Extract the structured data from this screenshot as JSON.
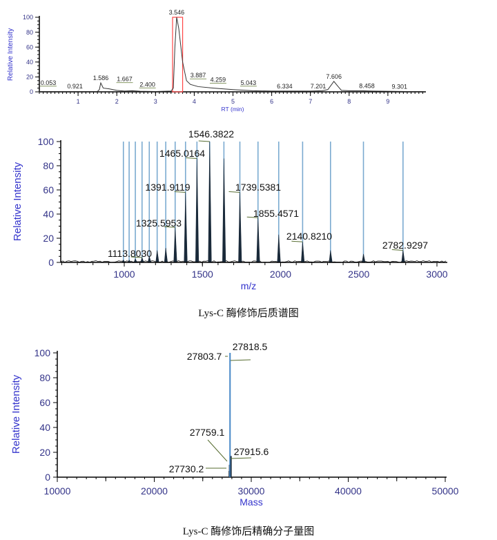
{
  "chart_data": [
    {
      "type": "line",
      "xlabel": "RT (min)",
      "ylabel": "Relative Intensity",
      "xlim": [
        0,
        10
      ],
      "ylim": [
        0,
        100
      ],
      "xticks": [
        "1",
        "2",
        "3",
        "4",
        "5",
        "6",
        "7",
        "8",
        "9"
      ],
      "yticks": [
        "0",
        "20",
        "40",
        "60",
        "80",
        "100"
      ],
      "trace": [
        [
          0,
          0.5
        ],
        [
          1.5,
          0.5
        ],
        [
          1.55,
          3
        ],
        [
          1.586,
          12
        ],
        [
          1.65,
          5
        ],
        [
          1.8,
          4
        ],
        [
          2.0,
          2
        ],
        [
          2.2,
          1
        ],
        [
          2.4,
          1.5
        ],
        [
          2.6,
          0.8
        ],
        [
          3.0,
          0.5
        ],
        [
          3.4,
          1
        ],
        [
          3.46,
          5
        ],
        [
          3.5,
          60
        ],
        [
          3.546,
          100
        ],
        [
          3.6,
          85
        ],
        [
          3.7,
          40
        ],
        [
          3.8,
          15
        ],
        [
          3.9,
          10
        ],
        [
          4.1,
          7
        ],
        [
          4.5,
          5
        ],
        [
          5.0,
          3
        ],
        [
          5.5,
          1.5
        ],
        [
          6.0,
          1
        ],
        [
          7.0,
          1
        ],
        [
          7.3,
          1.5
        ],
        [
          7.45,
          3
        ],
        [
          7.55,
          10
        ],
        [
          7.606,
          14
        ],
        [
          7.7,
          8
        ],
        [
          7.8,
          2
        ],
        [
          8.0,
          1.5
        ],
        [
          8.3,
          1.5
        ],
        [
          8.6,
          1
        ],
        [
          9.5,
          0.5
        ],
        [
          9.9,
          0.5
        ]
      ],
      "peak_labels": [
        {
          "rt": 0.053,
          "label": "0.053",
          "y": 3
        },
        {
          "rt": 0.921,
          "label": "0.921",
          "y": 1
        },
        {
          "rt": 1.586,
          "label": "1.586",
          "y": 12
        },
        {
          "rt": 1.667,
          "label": "1.667",
          "y": 5
        },
        {
          "rt": 2.4,
          "label": "2.400",
          "y": 1.5
        },
        {
          "rt": 3.546,
          "label": "3.546",
          "y": 100
        },
        {
          "rt": 3.887,
          "label": "3.887",
          "y": 10
        },
        {
          "rt": 4.259,
          "label": "4.259",
          "y": 6
        },
        {
          "rt": 5.043,
          "label": "5.043",
          "y": 3
        },
        {
          "rt": 6.334,
          "label": "6.334",
          "y": 1
        },
        {
          "rt": 7.201,
          "label": "7.201",
          "y": 1
        },
        {
          "rt": 7.606,
          "label": "7.606",
          "y": 14
        },
        {
          "rt": 8.458,
          "label": "8.458",
          "y": 1.5
        },
        {
          "rt": 9.301,
          "label": "9.301",
          "y": 0.5
        }
      ],
      "highlight_range": [
        3.44,
        3.7
      ],
      "colors": {
        "trace": "#333333",
        "highlight": "#ff4444",
        "axis_label": "#3333cc",
        "tick": "#333388"
      }
    },
    {
      "type": "bar",
      "xlabel": "m/z",
      "ylabel": "Relative Intensity",
      "xlim": [
        600,
        3050
      ],
      "ylim": [
        0,
        100
      ],
      "xticks": [
        "1000",
        "1500",
        "2000",
        "2500",
        "3000"
      ],
      "yticks": [
        "0",
        "20",
        "40",
        "60",
        "80",
        "100"
      ],
      "peaks": [
        [
          994.5,
          2
        ],
        [
          1031.3,
          2
        ],
        [
          1070.9,
          3
        ],
        [
          1113.803,
          4
        ],
        [
          1160.1,
          5
        ],
        [
          1210.5,
          10
        ],
        [
          1265.5,
          12
        ],
        [
          1325.5953,
          29
        ],
        [
          1391.9119,
          58
        ],
        [
          1465.0164,
          86
        ],
        [
          1546.3822,
          100
        ],
        [
          1637.4,
          86
        ],
        [
          1739.5381,
          58
        ],
        [
          1855.4571,
          37
        ],
        [
          1988.0,
          23
        ],
        [
          2140.821,
          17
        ],
        [
          2319.2,
          10
        ],
        [
          2529.9,
          7
        ],
        [
          2782.9297,
          10
        ]
      ],
      "annotations": [
        "1113.8030",
        "1325.5953",
        "1391.9119",
        "1465.0164",
        "1546.3822",
        "1739.5381",
        "1855.4571",
        "2140.8210",
        "2782.9297"
      ],
      "colors": {
        "peak": "#1a2a3a",
        "marker_line": "#7aaad0",
        "leader": "#556b2f"
      }
    },
    {
      "type": "bar",
      "xlabel": "Mass",
      "ylabel": "Relative Intensity",
      "xlim": [
        10000,
        50000
      ],
      "ylim": [
        0,
        100
      ],
      "xticks": [
        "10000",
        "20000",
        "30000",
        "40000",
        "50000"
      ],
      "yticks": [
        "0",
        "20",
        "40",
        "60",
        "80",
        "100"
      ],
      "peaks": [
        [
          27730.2,
          5
        ],
        [
          27759.1,
          10
        ],
        [
          27803.7,
          100
        ],
        [
          27818.5,
          100
        ],
        [
          27915.6,
          17
        ]
      ],
      "annotations": [
        "27730.2",
        "27759.1",
        "27803.7",
        "27818.5",
        "27915.6"
      ],
      "colors": {
        "peak": "#4a8ac8",
        "leader": "#556b2f"
      }
    }
  ],
  "captions": {
    "ms": "Lys-C 酶修饰后质谱图",
    "mass": "Lys-C 酶修饰后精确分子量图"
  }
}
